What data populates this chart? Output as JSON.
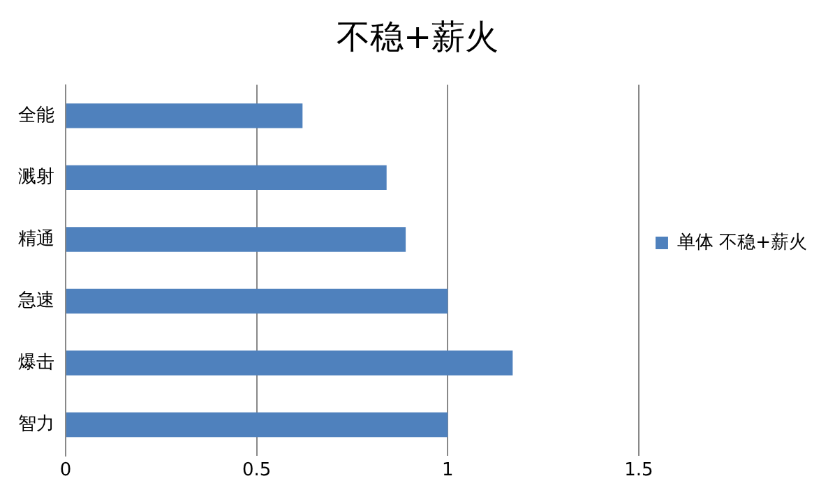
{
  "chart_data": {
    "type": "bar",
    "orientation": "horizontal",
    "title": "不稳+薪火",
    "categories": [
      "全能",
      "溅射",
      "精通",
      "急速",
      "爆击",
      "智力"
    ],
    "series": [
      {
        "name": "单体 不稳+薪火",
        "color": "#4f81bd",
        "values": [
          0.62,
          0.84,
          0.89,
          1.0,
          1.17,
          1.0
        ]
      }
    ],
    "xlim": [
      0,
      1.5
    ],
    "xticks": [
      0,
      0.5,
      1,
      1.5
    ],
    "grid": "x",
    "legend": "right"
  }
}
